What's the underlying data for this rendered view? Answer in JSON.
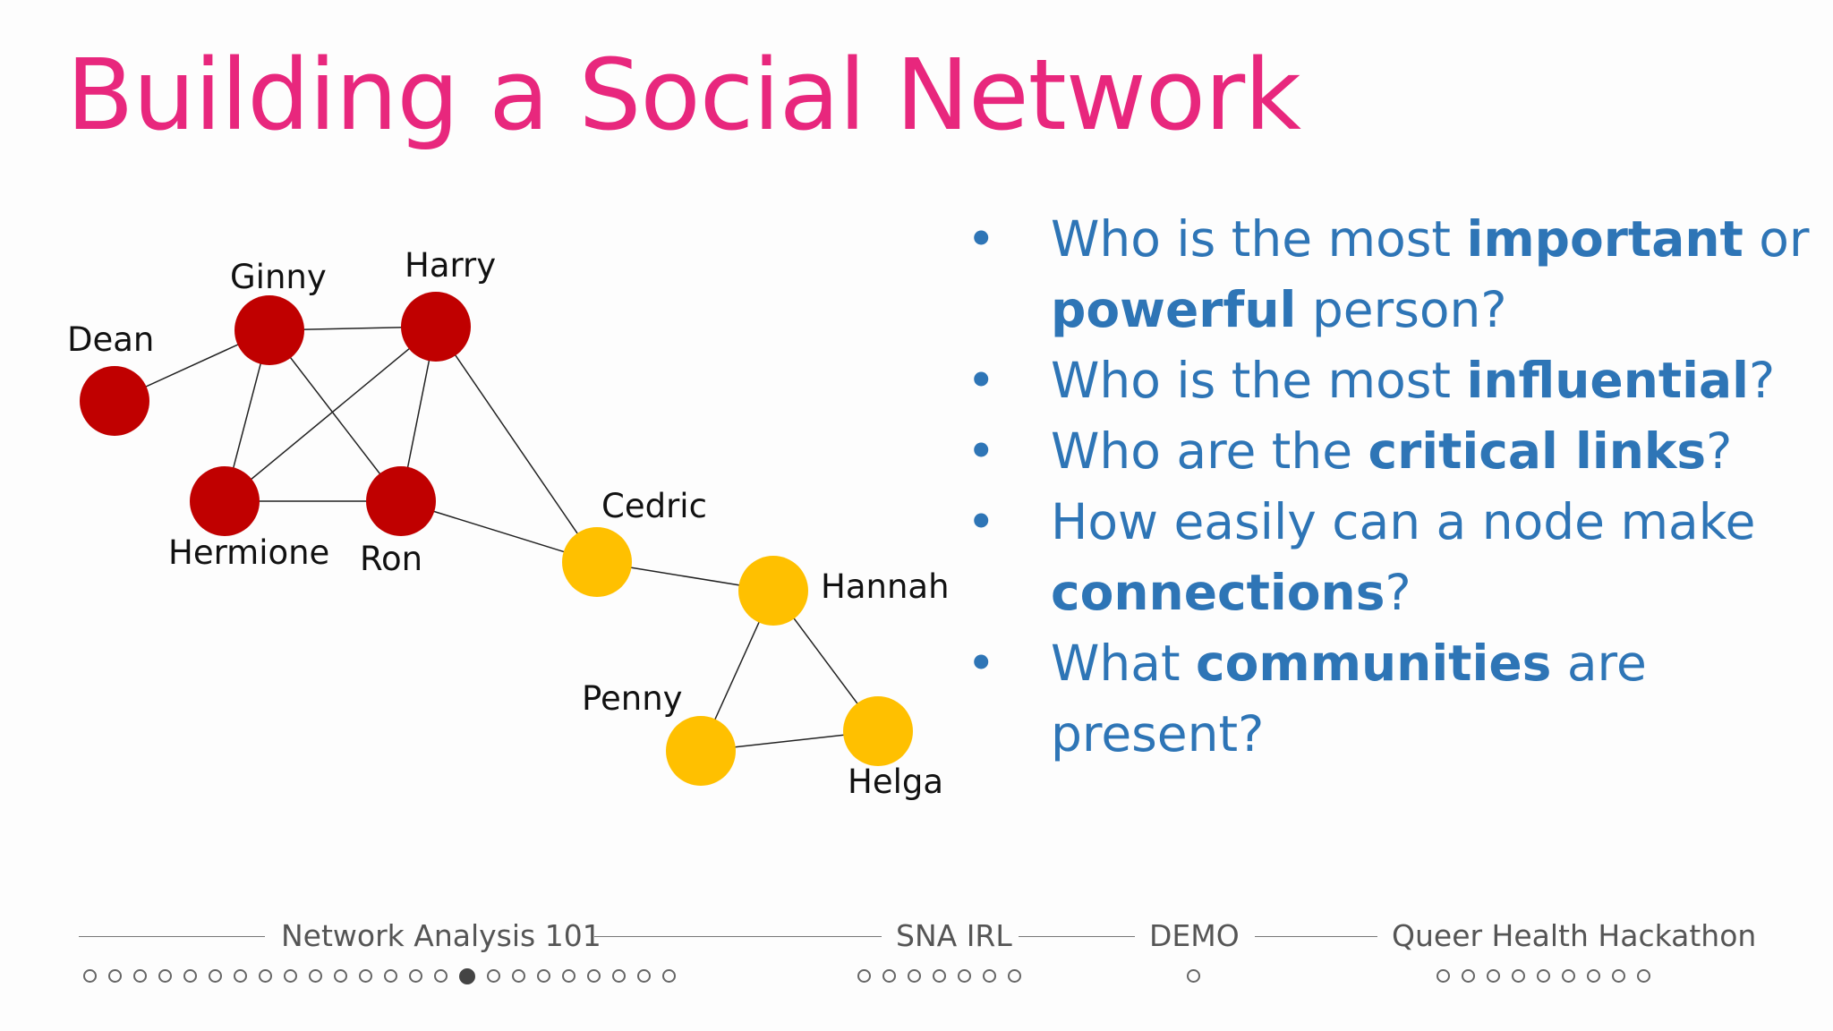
{
  "title": "Building a Social Network",
  "colors": {
    "title": "#e8277d",
    "text": "#2e75b6",
    "group_red": "#c00000",
    "group_yellow": "#ffc000"
  },
  "graph": {
    "nodes": [
      {
        "id": "dean",
        "label": "Dean",
        "group": "red"
      },
      {
        "id": "ginny",
        "label": "Ginny",
        "group": "red"
      },
      {
        "id": "harry",
        "label": "Harry",
        "group": "red"
      },
      {
        "id": "hermione",
        "label": "Hermione",
        "group": "red"
      },
      {
        "id": "ron",
        "label": "Ron",
        "group": "red"
      },
      {
        "id": "cedric",
        "label": "Cedric",
        "group": "yellow"
      },
      {
        "id": "hannah",
        "label": "Hannah",
        "group": "yellow"
      },
      {
        "id": "penny",
        "label": "Penny",
        "group": "yellow"
      },
      {
        "id": "helga",
        "label": "Helga",
        "group": "yellow"
      }
    ],
    "edges": [
      [
        "dean",
        "ginny"
      ],
      [
        "ginny",
        "harry"
      ],
      [
        "ginny",
        "hermione"
      ],
      [
        "ginny",
        "ron"
      ],
      [
        "harry",
        "hermione"
      ],
      [
        "harry",
        "ron"
      ],
      [
        "harry",
        "cedric"
      ],
      [
        "hermione",
        "ron"
      ],
      [
        "ron",
        "cedric"
      ],
      [
        "cedric",
        "hannah"
      ],
      [
        "hannah",
        "penny"
      ],
      [
        "hannah",
        "helga"
      ],
      [
        "penny",
        "helga"
      ]
    ]
  },
  "questions": [
    {
      "parts": [
        {
          "text": "Who is the most ",
          "bold": false
        },
        {
          "text": "important",
          "bold": true
        },
        {
          "text": " or ",
          "bold": false
        },
        {
          "text": "powerful",
          "bold": true
        },
        {
          "text": " person?",
          "bold": false
        }
      ]
    },
    {
      "parts": [
        {
          "text": "Who is the most ",
          "bold": false
        },
        {
          "text": "influential",
          "bold": true
        },
        {
          "text": "?",
          "bold": false
        }
      ]
    },
    {
      "parts": [
        {
          "text": "Who are the ",
          "bold": false
        },
        {
          "text": "critical links",
          "bold": true
        },
        {
          "text": "?",
          "bold": false
        }
      ]
    },
    {
      "parts": [
        {
          "text": "How easily can a node make ",
          "bold": false
        },
        {
          "text": "connections",
          "bold": true
        },
        {
          "text": "?",
          "bold": false
        }
      ]
    },
    {
      "parts": [
        {
          "text": "What ",
          "bold": false
        },
        {
          "text": "communities",
          "bold": true
        },
        {
          "text": " are present?",
          "bold": false
        }
      ]
    }
  ],
  "nav": {
    "sections": [
      {
        "label": "Network Analysis 101",
        "dots": 24,
        "active_index": 15
      },
      {
        "label": "SNA IRL",
        "dots": 7,
        "active_index": -1
      },
      {
        "label": "DEMO",
        "dots": 1,
        "active_index": -1
      },
      {
        "label": "Queer Health Hackathon",
        "dots": 9,
        "active_index": -1
      }
    ]
  }
}
